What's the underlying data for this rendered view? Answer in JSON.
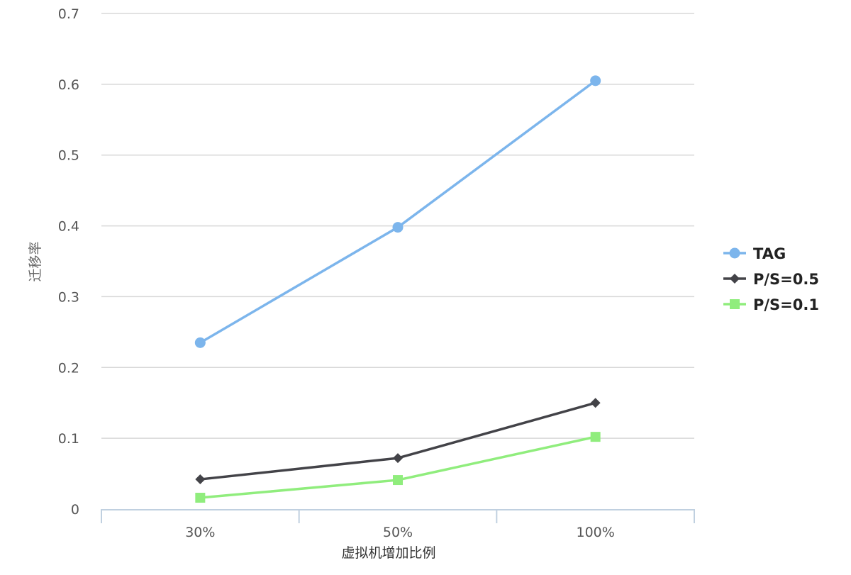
{
  "chart_data": {
    "type": "line",
    "categories": [
      "30%",
      "50%",
      "100%"
    ],
    "series": [
      {
        "name": "TAG",
        "values": [
          0.235,
          0.398,
          0.605
        ],
        "color": "#7cb5ec",
        "marker": "circle"
      },
      {
        "name": "P/S=0.5",
        "values": [
          0.042,
          0.072,
          0.15
        ],
        "color": "#434348",
        "marker": "diamond"
      },
      {
        "name": "P/S=0.1",
        "values": [
          0.016,
          0.041,
          0.102
        ],
        "color": "#90ed7d",
        "marker": "square"
      }
    ],
    "yticks": [
      "0",
      "0.1",
      "0.2",
      "0.3",
      "0.4",
      "0.5",
      "0.6",
      "0.7"
    ],
    "xlabel": "虚拟机增加比例",
    "ylabel": "迁移率",
    "ylim": [
      0,
      0.7
    ],
    "grid": true,
    "legend_position": "right"
  }
}
